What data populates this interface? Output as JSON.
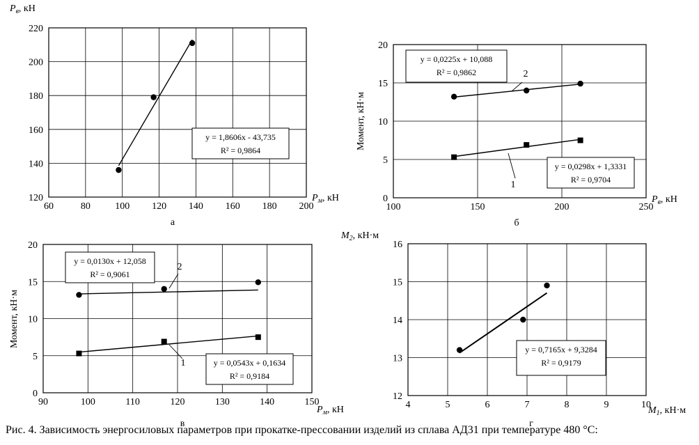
{
  "caption": "Рис. 4. Зависимость энергосиловых параметров при прокатке-прессовании изделий из сплава АД31 при температуре 480 °С:",
  "chart_data": [
    {
      "type": "scatter",
      "panel": "а",
      "ylabel_main": "P",
      "ylabel_sub": "в",
      "ylabel_unit": ", кН",
      "xlabel_main": "P",
      "xlabel_sub": "м",
      "xlabel_unit": ", кН",
      "xlim": [
        60,
        200
      ],
      "ylim": [
        120,
        220
      ],
      "xticks": [
        60,
        80,
        100,
        120,
        140,
        160,
        180,
        200
      ],
      "yticks": [
        120,
        140,
        160,
        180,
        200,
        220
      ],
      "series": [
        {
          "points": [
            [
              98,
              136
            ],
            [
              117,
              179
            ],
            [
              138,
              211
            ]
          ],
          "marker": "circle",
          "trend": {
            "slope": 1.8606,
            "intercept": -43.735,
            "x": [
              98,
              138
            ]
          }
        }
      ],
      "annotations": [
        {
          "eq": "y = 1,8606x - 43,735",
          "r2": "R² = 0,9864"
        }
      ]
    },
    {
      "type": "scatter",
      "panel": "б",
      "ylabel": "Момент, кН·м",
      "xlabel_main": "P",
      "xlabel_sub": "в",
      "xlabel_unit": ", кН",
      "xlim": [
        100,
        250
      ],
      "ylim": [
        0,
        20
      ],
      "xticks": [
        100,
        150,
        200,
        250
      ],
      "yticks": [
        0,
        5,
        10,
        15,
        20
      ],
      "series": [
        {
          "label": "2",
          "marker": "circle",
          "points": [
            [
              136,
              13.2
            ],
            [
              179,
              14.0
            ],
            [
              211,
              14.9
            ]
          ],
          "trend": {
            "slope": 0.0225,
            "intercept": 10.088,
            "x": [
              136,
              211
            ]
          }
        },
        {
          "label": "1",
          "marker": "square",
          "points": [
            [
              136,
              5.3
            ],
            [
              179,
              6.9
            ],
            [
              211,
              7.5
            ]
          ],
          "trend": {
            "slope": 0.0298,
            "intercept": 1.3331,
            "x": [
              136,
              211
            ]
          }
        }
      ],
      "annotations": [
        {
          "eq": "y = 0,0225x + 10,088",
          "r2": "R² = 0,9862"
        },
        {
          "eq": "y = 0,0298x + 1,3331",
          "r2": "R² = 0,9704"
        }
      ]
    },
    {
      "type": "scatter",
      "panel": "в",
      "ylabel": "Момент, кН·м",
      "xlabel_main": "P",
      "xlabel_sub": "м",
      "xlabel_unit": ", кН",
      "xlim": [
        90,
        150
      ],
      "ylim": [
        0,
        20
      ],
      "xticks": [
        90,
        100,
        110,
        120,
        130,
        140,
        150
      ],
      "yticks": [
        0,
        5,
        10,
        15,
        20
      ],
      "series": [
        {
          "label": "2",
          "marker": "circle",
          "points": [
            [
              98,
              13.2
            ],
            [
              117,
              14.0
            ],
            [
              138,
              14.9
            ]
          ],
          "trend": {
            "slope": 0.013,
            "intercept": 12.058,
            "x": [
              98,
              138
            ]
          }
        },
        {
          "label": "1",
          "marker": "square",
          "points": [
            [
              98,
              5.3
            ],
            [
              117,
              6.9
            ],
            [
              138,
              7.5
            ]
          ],
          "trend": {
            "slope": 0.0543,
            "intercept": 0.1634,
            "x": [
              98,
              138
            ]
          }
        }
      ],
      "annotations": [
        {
          "eq": "y = 0,0130x + 12,058",
          "r2": "R² = 0,9061"
        },
        {
          "eq": "y = 0,0543x + 0,1634",
          "r2": "R² = 0,9184"
        }
      ]
    },
    {
      "type": "scatter",
      "panel": "г",
      "ylabel_main": "M",
      "ylabel_sub": "2",
      "ylabel_unit": ", кН·м",
      "xlabel_main": "M",
      "xlabel_sub": "1",
      "xlabel_unit": ", кН·м",
      "xlim": [
        4,
        10
      ],
      "ylim": [
        12,
        16
      ],
      "xticks": [
        4,
        5,
        6,
        7,
        8,
        9,
        10
      ],
      "yticks": [
        12,
        13,
        14,
        15,
        16
      ],
      "series": [
        {
          "marker": "circle",
          "points": [
            [
              5.3,
              13.2
            ],
            [
              6.9,
              14.0
            ],
            [
              7.5,
              14.9
            ]
          ],
          "trend": {
            "slope": 0.7165,
            "intercept": 9.3284,
            "x": [
              5.3,
              7.5
            ]
          }
        }
      ],
      "annotations": [
        {
          "eq": "y = 0,7165x + 9,3284",
          "r2": "R² = 0,9179"
        }
      ]
    }
  ]
}
